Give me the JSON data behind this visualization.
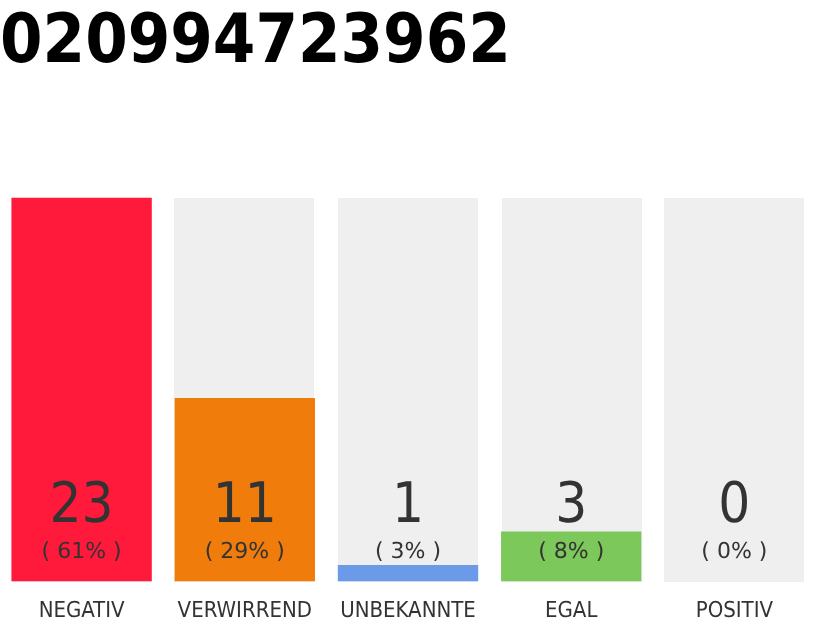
{
  "chart_data": {
    "type": "bar",
    "title": "020994723962",
    "categories": [
      "NEGATIV",
      "VERWIRREND",
      "UNBEKANNTE",
      "EGAL",
      "POSITIV"
    ],
    "values": [
      23,
      11,
      1,
      3,
      0
    ],
    "colors": [
      "#ff1a3c",
      "#f07c0c",
      "#6b9be8",
      "#7dc85a",
      "#bdbdbd"
    ],
    "value_labels": [
      "23\n( 61% )",
      "11\n( 29% )",
      "1\n( 3% )",
      "3\n( 8% )",
      "0\n( 0% )"
    ],
    "tick_labels": "x",
    "grid": false,
    "legend": false
  }
}
